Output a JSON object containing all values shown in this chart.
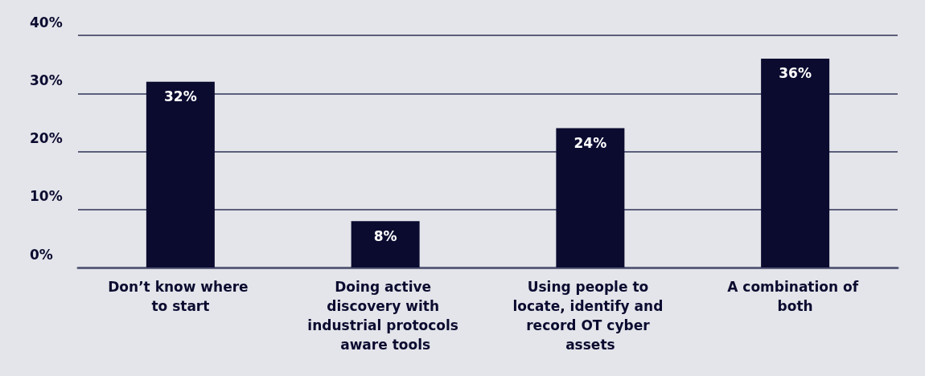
{
  "chart_data": {
    "type": "bar",
    "categories": [
      "Don’t know where to start",
      "Doing active discovery with industrial protocols aware tools",
      "Using people to locate, identify and record OT cyber assets",
      "A combination of both"
    ],
    "values": [
      32,
      8,
      24,
      36
    ],
    "color": "#0b0b30",
    "ylim": [
      0,
      40
    ],
    "yticks": [
      {
        "value": 0,
        "label": "0%"
      },
      {
        "value": 10,
        "label": "10%"
      },
      {
        "value": 20,
        "label": "20%"
      },
      {
        "value": 30,
        "label": "30%"
      },
      {
        "value": 40,
        "label": "40%"
      }
    ],
    "grid": true,
    "value_labels": [
      "32%",
      "8%",
      "24%",
      "36%"
    ]
  }
}
